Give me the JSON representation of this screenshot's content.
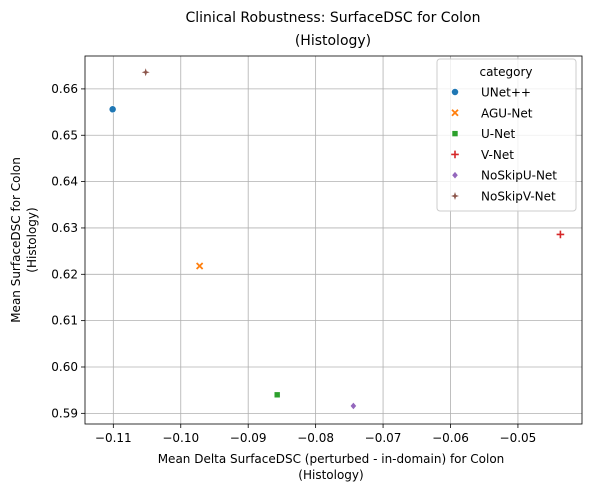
{
  "chart_data": {
    "type": "scatter",
    "title_lines": [
      "Clinical Robustness: SurfaceDSC for Colon",
      "(Histology)"
    ],
    "xlabel_lines": [
      "Mean Delta SurfaceDSC (perturbed - in-domain) for Colon",
      "(Histology)"
    ],
    "ylabel_lines": [
      "Mean SurfaceDSC for Colon",
      "(Histology)"
    ],
    "xlim": [
      -0.1142,
      -0.0405
    ],
    "ylim": [
      0.5877,
      0.6671
    ],
    "x_ticks": [
      -0.11,
      -0.1,
      -0.09,
      -0.08,
      -0.07,
      -0.06,
      -0.05
    ],
    "x_tick_labels": [
      "−0.11",
      "−0.10",
      "−0.09",
      "−0.08",
      "−0.07",
      "−0.06",
      "−0.05"
    ],
    "y_ticks": [
      0.59,
      0.6,
      0.61,
      0.62,
      0.63,
      0.64,
      0.65,
      0.66
    ],
    "y_tick_labels": [
      "0.59",
      "0.60",
      "0.61",
      "0.62",
      "0.63",
      "0.64",
      "0.65",
      "0.66"
    ],
    "grid": true,
    "legend": {
      "title": "category",
      "placement": "top-right"
    },
    "series": [
      {
        "name": "UNet++",
        "marker": "circle",
        "color": "#1f77b4",
        "x": -0.1101,
        "y": 0.6556
      },
      {
        "name": "AGU-Net",
        "marker": "x",
        "color": "#ff7f0e",
        "x": -0.0972,
        "y": 0.6218
      },
      {
        "name": "U-Net",
        "marker": "square",
        "color": "#2ca02c",
        "x": -0.0857,
        "y": 0.594
      },
      {
        "name": "V-Net",
        "marker": "plus",
        "color": "#d62728",
        "x": -0.0437,
        "y": 0.6286
      },
      {
        "name": "NoSkipU-Net",
        "marker": "diamond",
        "color": "#9467bd",
        "x": -0.0744,
        "y": 0.5916
      },
      {
        "name": "NoSkipV-Net",
        "marker": "star",
        "color": "#8c564b",
        "x": -0.1052,
        "y": 0.6636
      }
    ]
  }
}
